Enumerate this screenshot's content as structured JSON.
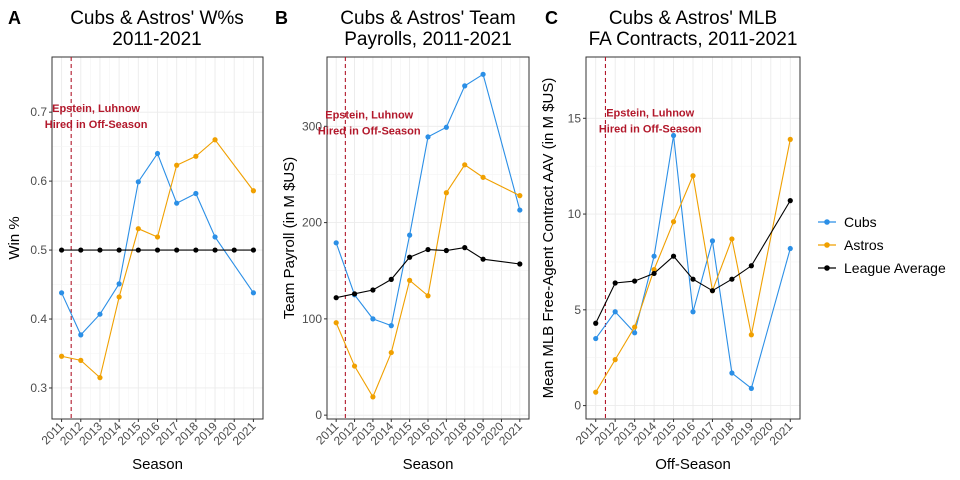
{
  "colors": {
    "Cubs": "#2b8fe6",
    "Astros": "#f0a000",
    "League Average": "#000000",
    "annotation": "#b2182b",
    "grid": "#ebebeb",
    "panel_border": "#333333"
  },
  "legend": {
    "placement": "right",
    "entries": [
      "Cubs",
      "Astros",
      "League Average"
    ]
  },
  "chart_data": [
    {
      "panel": "A",
      "type": "line",
      "title": [
        "Cubs & Astros' W%s",
        "2011-2021"
      ],
      "xlabel": "Season",
      "ylabel": "Win %",
      "categories": [
        "2011",
        "2012",
        "2013",
        "2014",
        "2015",
        "2016",
        "2017",
        "2018",
        "2019",
        "2020",
        "2021"
      ],
      "ylim": [
        0.255,
        0.78
      ],
      "yticks": [
        0.3,
        0.4,
        0.5,
        0.6,
        0.7
      ],
      "ytick_labels": [
        "0.3",
        "0.4",
        "0.5",
        "0.6",
        "0.7"
      ],
      "vline_x": 2011.5,
      "annotation": {
        "lines": [
          "Epstein, Luhnow",
          "Hired in Off-Season"
        ],
        "x": 2012.8,
        "y": 0.7
      },
      "series": [
        {
          "name": "Cubs",
          "x": [
            2011,
            2012,
            2013,
            2014,
            2015,
            2016,
            2017,
            2018,
            2019,
            2021
          ],
          "values": [
            0.438,
            0.377,
            0.407,
            0.451,
            0.599,
            0.64,
            0.568,
            0.582,
            0.519,
            0.438
          ]
        },
        {
          "name": "Astros",
          "x": [
            2011,
            2012,
            2013,
            2014,
            2015,
            2016,
            2017,
            2018,
            2019,
            2021
          ],
          "values": [
            0.346,
            0.34,
            0.315,
            0.432,
            0.531,
            0.519,
            0.623,
            0.636,
            0.66,
            0.586
          ]
        },
        {
          "name": "League Average",
          "x": [
            2011,
            2012,
            2013,
            2014,
            2015,
            2016,
            2017,
            2018,
            2019,
            2020,
            2021
          ],
          "values": [
            0.5,
            0.5,
            0.5,
            0.5,
            0.5,
            0.5,
            0.5,
            0.5,
            0.5,
            0.5,
            0.5
          ]
        }
      ]
    },
    {
      "panel": "B",
      "type": "line",
      "title": [
        "Cubs & Astros' Team",
        "Payrolls, 2011-2021"
      ],
      "xlabel": "Season",
      "ylabel": "Team Payroll (in M $US)",
      "categories": [
        "2011",
        "2012",
        "2013",
        "2014",
        "2015",
        "2016",
        "2017",
        "2018",
        "2019",
        "2020",
        "2021"
      ],
      "ylim": [
        -4,
        372
      ],
      "yticks": [
        0,
        100,
        200,
        300
      ],
      "ytick_labels": [
        "0",
        "100",
        "200",
        "300"
      ],
      "vline_x": 2011.5,
      "annotation": {
        "lines": [
          "Epstein, Luhnow",
          "Hired in Off-Season"
        ],
        "x": 2012.8,
        "y": 308
      },
      "series": [
        {
          "name": "Cubs",
          "x": [
            2011,
            2012,
            2013,
            2014,
            2015,
            2016,
            2017,
            2018,
            2019,
            2021
          ],
          "values": [
            179,
            125,
            100,
            93,
            187,
            289,
            299,
            342,
            354,
            213
          ]
        },
        {
          "name": "Astros",
          "x": [
            2011,
            2012,
            2013,
            2014,
            2015,
            2016,
            2017,
            2018,
            2019,
            2021
          ],
          "values": [
            96,
            51,
            19,
            65,
            140,
            124,
            231,
            260,
            247,
            228
          ]
        },
        {
          "name": "League Average",
          "x": [
            2011,
            2012,
            2013,
            2014,
            2015,
            2016,
            2017,
            2018,
            2019,
            2021
          ],
          "values": [
            122,
            126,
            130,
            141,
            164,
            172,
            171,
            174,
            162,
            157
          ]
        }
      ]
    },
    {
      "panel": "C",
      "type": "line",
      "title": [
        "Cubs & Astros' MLB",
        "FA Contracts, 2011-2021"
      ],
      "xlabel": "Off-Season",
      "ylabel": "Mean MLB Free-Agent Contract AAV (in M $US)",
      "categories": [
        "2011",
        "2012",
        "2013",
        "2014",
        "2015",
        "2016",
        "2017",
        "2018",
        "2019",
        "2020",
        "2021"
      ],
      "ylim": [
        -0.7,
        18.2
      ],
      "yticks": [
        0,
        5,
        10,
        15
      ],
      "ytick_labels": [
        "0",
        "5",
        "10",
        "15"
      ],
      "vline_x": 2011.5,
      "annotation": {
        "lines": [
          "Epstein, Luhnow",
          "Hired in Off-Season"
        ],
        "x": 2013.8,
        "y": 15.1
      },
      "series": [
        {
          "name": "Cubs",
          "x": [
            2011,
            2012,
            2013,
            2014,
            2015,
            2016,
            2017,
            2018,
            2019,
            2021
          ],
          "values": [
            3.5,
            4.9,
            3.8,
            7.8,
            14.1,
            4.9,
            8.6,
            1.7,
            0.9,
            8.2
          ]
        },
        {
          "name": "Astros",
          "x": [
            2011,
            2012,
            2013,
            2014,
            2015,
            2016,
            2017,
            2018,
            2019,
            2021
          ],
          "values": [
            0.7,
            2.4,
            4.1,
            7.1,
            9.6,
            12.0,
            6.0,
            8.7,
            3.7,
            13.9
          ]
        },
        {
          "name": "League Average",
          "x": [
            2011,
            2012,
            2013,
            2014,
            2015,
            2016,
            2017,
            2018,
            2019,
            2021
          ],
          "values": [
            4.3,
            6.4,
            6.5,
            6.9,
            7.8,
            6.6,
            6.0,
            6.6,
            7.3,
            10.7
          ]
        }
      ]
    }
  ]
}
